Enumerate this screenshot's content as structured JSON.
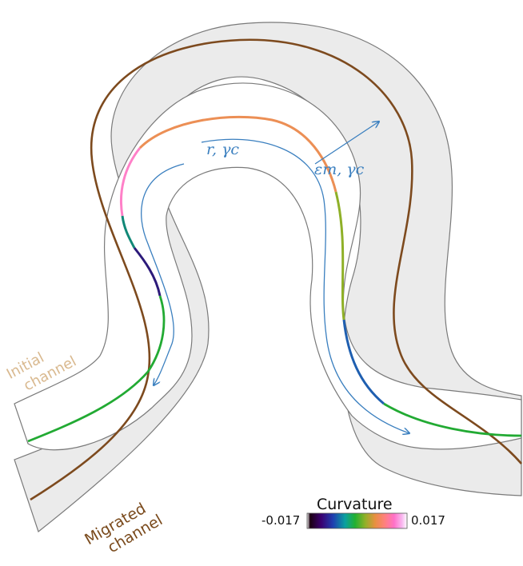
{
  "labels": {
    "initial_channel": [
      "Initial",
      "channel"
    ],
    "migrated_channel": [
      "Migrated",
      "channel"
    ],
    "inner_arrow": "r, γc",
    "outer_arrow": "εm, γc"
  },
  "colorbar": {
    "title": "Curvature",
    "min_label": "-0.017",
    "max_label": "0.017",
    "stops": [
      "#ffffff",
      "#1a0010",
      "#3a0070",
      "#1f3fb0",
      "#0aa0a0",
      "#22b030",
      "#8fb028",
      "#e89040",
      "#ff8080",
      "#ff70c8",
      "#f8b8f0",
      "#ffffff"
    ]
  },
  "colors": {
    "channel_fill": "#ebebeb",
    "channel_edge": "#7a7a7a",
    "migrated_centerline": "#7d4a1e",
    "initial_centerline": "#22aa33",
    "migration_arrows": "#3a7fbf",
    "initial_label": "#d9b98f",
    "migrated_label": "#7a4a1c"
  }
}
